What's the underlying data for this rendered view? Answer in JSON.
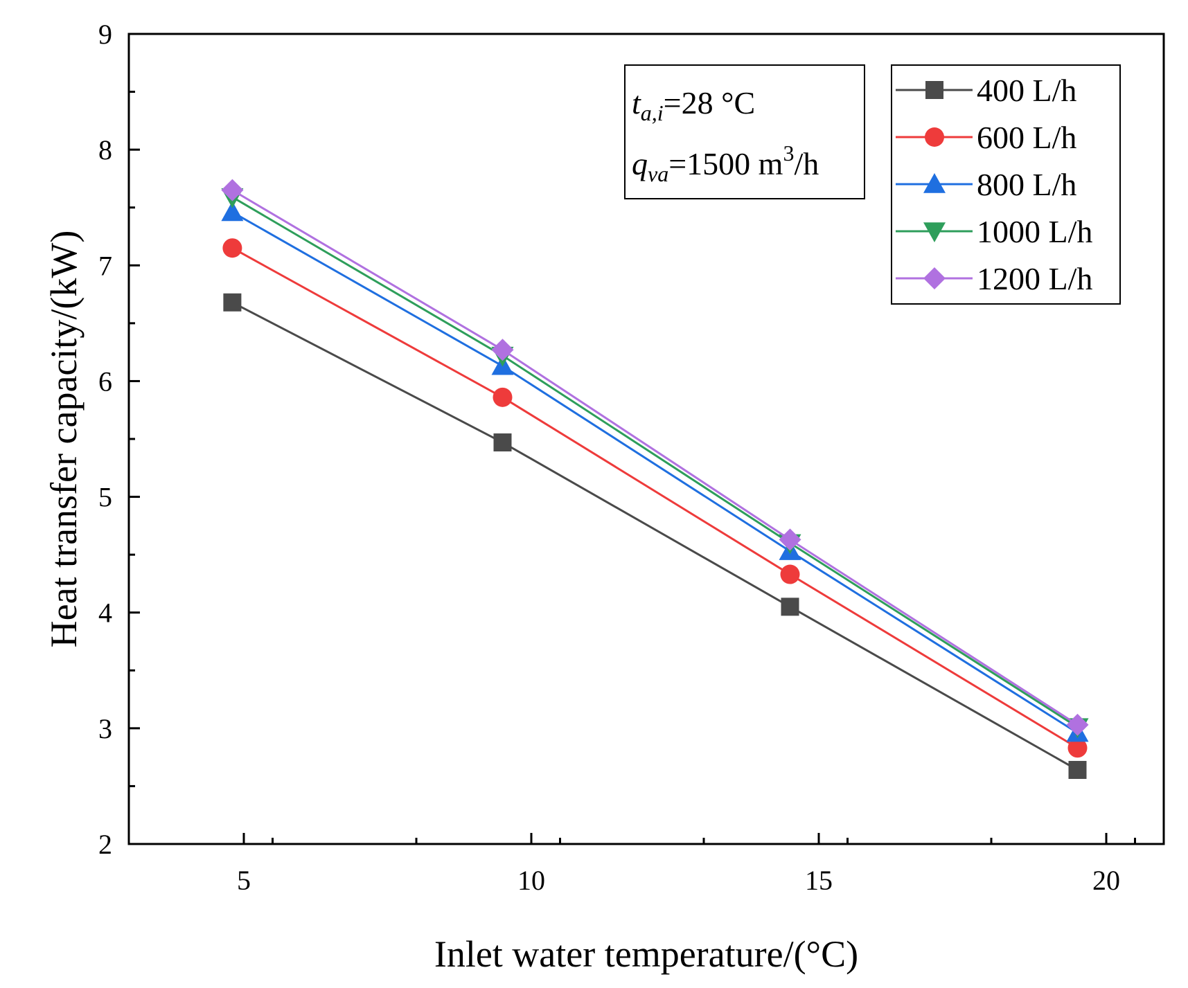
{
  "chart_data": {
    "type": "line",
    "xlabel": "Inlet water temperature/(°C)",
    "ylabel": "Heat transfer capacity/(kW)",
    "xlim": [
      3,
      21
    ],
    "ylim": [
      2,
      9
    ],
    "xticks": [
      5,
      10,
      15,
      20
    ],
    "yticks": [
      2,
      3,
      4,
      5,
      6,
      7,
      8,
      9
    ],
    "x": [
      4.8,
      9.5,
      14.5,
      19.5
    ],
    "legend_position": "top-right",
    "annotation": {
      "line1": {
        "var": "t",
        "sub": "a,i",
        "rest": "=28 °C"
      },
      "line2": {
        "var": "q",
        "sub": "va",
        "rest": "=1500 m",
        "sup": "3",
        "tail": "/h"
      }
    },
    "series": [
      {
        "name": "400 L/h",
        "marker": "square",
        "color": "#4a4a4a",
        "values": [
          6.68,
          5.47,
          4.05,
          2.64
        ]
      },
      {
        "name": "600 L/h",
        "marker": "circle",
        "color": "#ee3b3b",
        "values": [
          7.15,
          5.86,
          4.33,
          2.83
        ]
      },
      {
        "name": "800 L/h",
        "marker": "triangle-up",
        "color": "#1f6fe0",
        "values": [
          7.46,
          6.13,
          4.53,
          2.96
        ]
      },
      {
        "name": "1000 L/h",
        "marker": "triangle-down",
        "color": "#2e9e5b",
        "values": [
          7.59,
          6.22,
          4.6,
          3.01
        ]
      },
      {
        "name": "1200 L/h",
        "marker": "diamond",
        "color": "#b071e0",
        "values": [
          7.65,
          6.27,
          4.63,
          3.03
        ]
      }
    ]
  }
}
